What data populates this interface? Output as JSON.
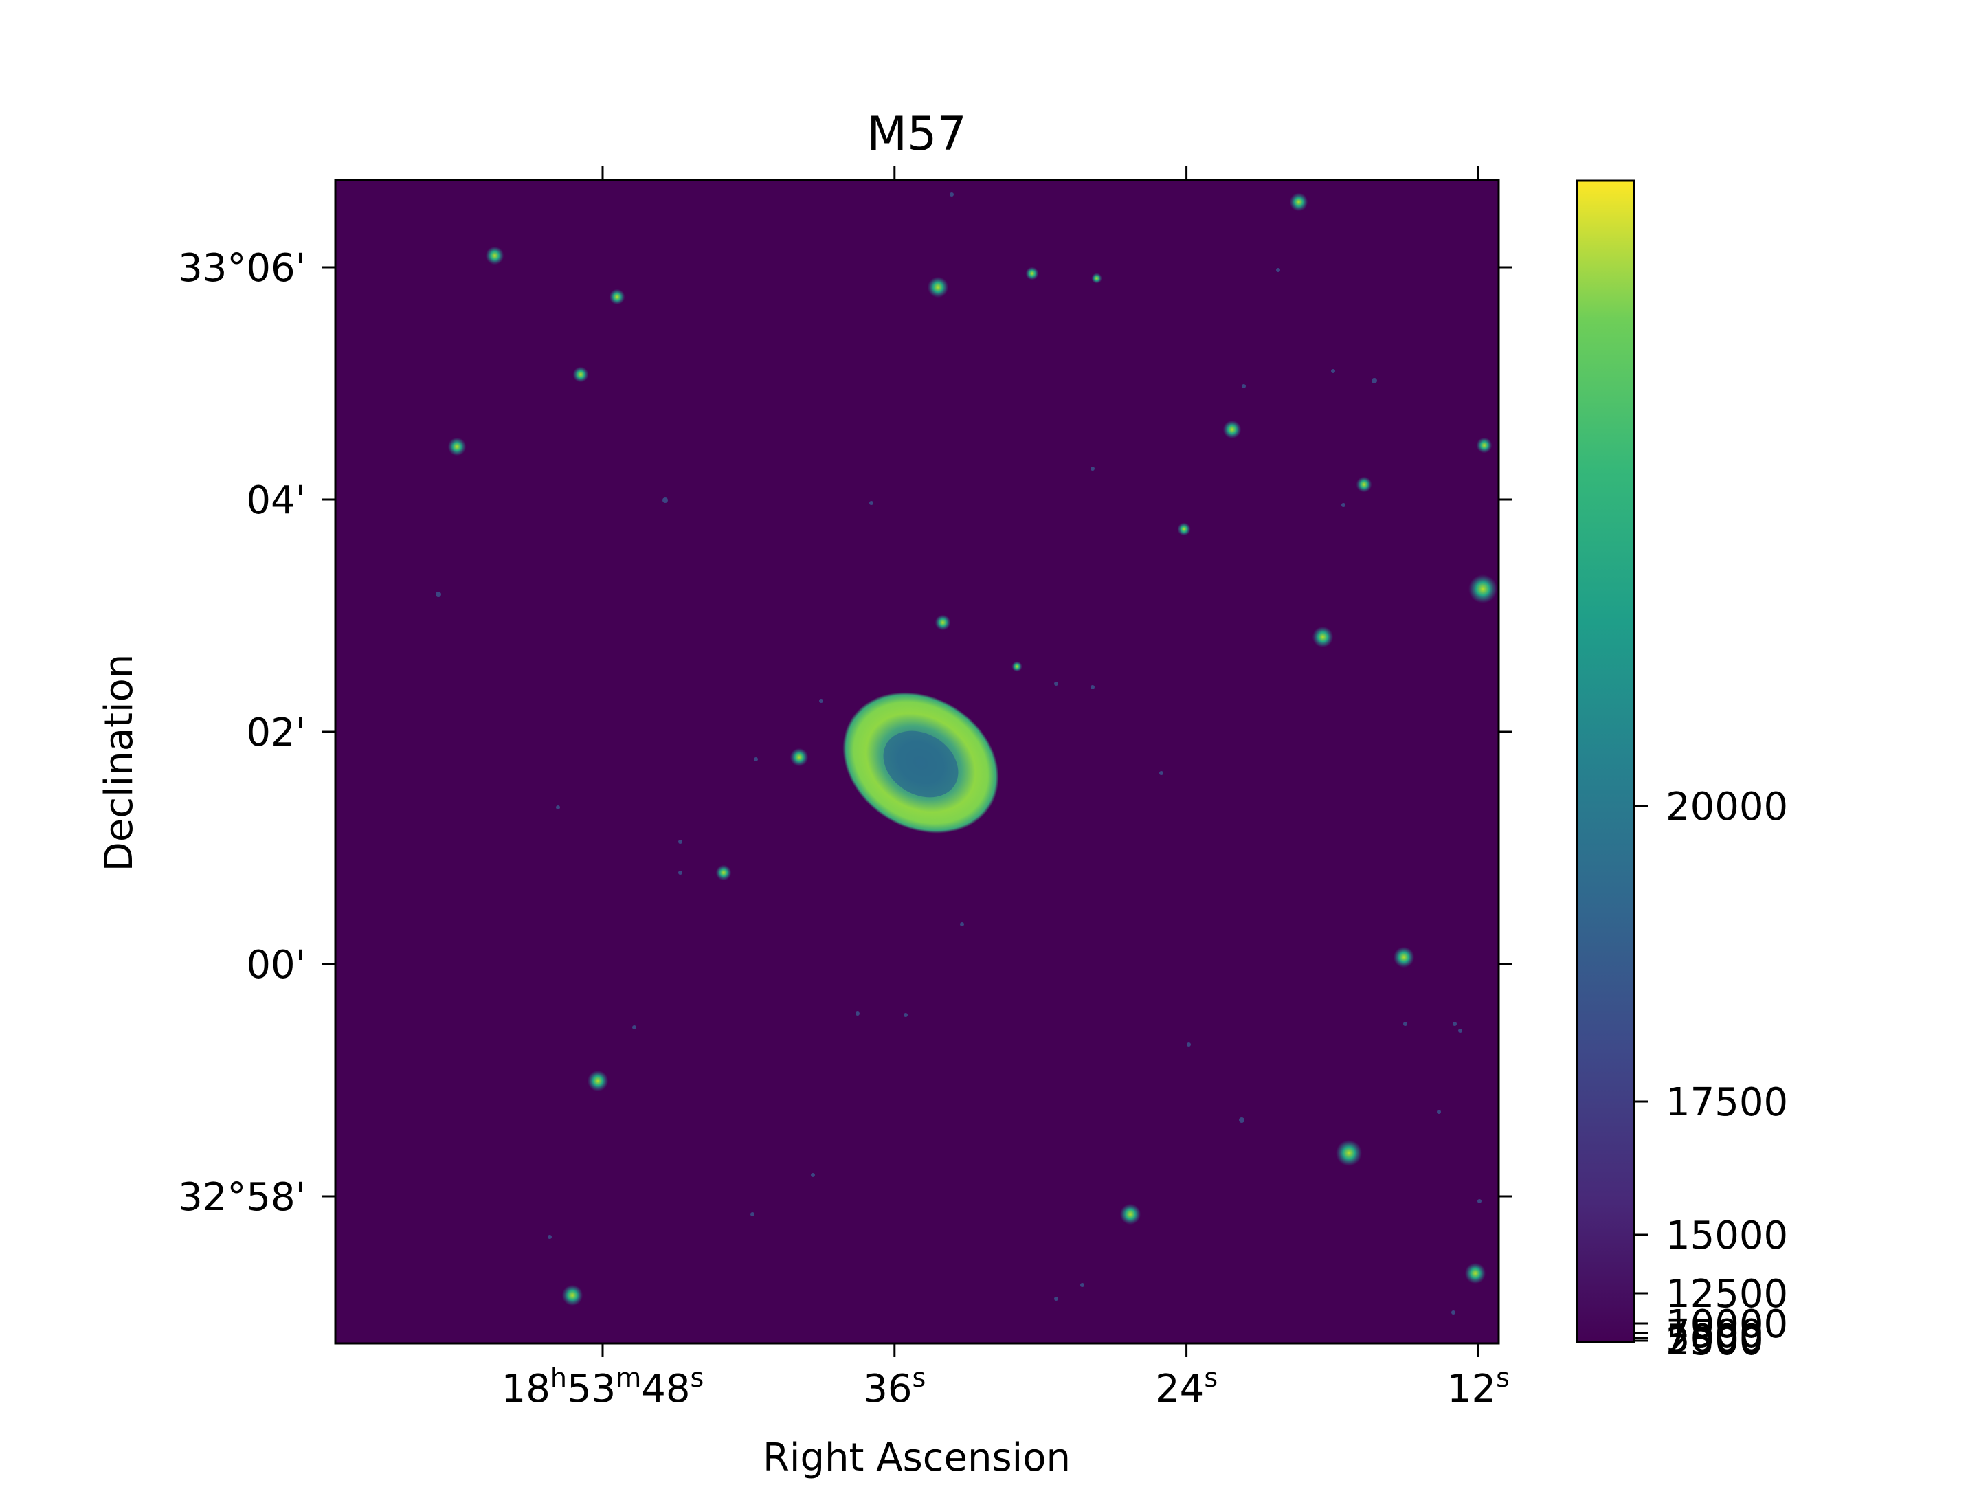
{
  "chart_data": {
    "type": "heatmap",
    "title": "M57",
    "xlabel": "Right Ascension",
    "ylabel": "Declination",
    "x_ticks": [
      {
        "value_s": 48,
        "h": "18",
        "m": "53",
        "s": "48",
        "label": "18h53m48s"
      },
      {
        "value_s": 36,
        "s": "36",
        "label": "36s"
      },
      {
        "value_s": 24,
        "s": "24",
        "label": "24s"
      },
      {
        "value_s": 12,
        "s": "12",
        "label": "12s"
      }
    ],
    "y_ticks": [
      {
        "value_arcmin": 6,
        "label": "33°06'"
      },
      {
        "value_arcmin": 4,
        "label": "04'"
      },
      {
        "value_arcmin": 2,
        "label": "02'"
      },
      {
        "value_arcmin": 0,
        "label": "00'"
      },
      {
        "value_arcmin": -2,
        "label": "32°58'"
      }
    ],
    "colorbar": {
      "colormap": "viridis",
      "scale": "nonlinear",
      "ticks": [
        {
          "value": 20000,
          "label": "20000"
        },
        {
          "value": 17500,
          "label": "17500"
        },
        {
          "value": 15000,
          "label": "15000"
        },
        {
          "value": 12500,
          "label": "12500"
        },
        {
          "value": 10000,
          "label": "10000"
        },
        {
          "value": 7500,
          "label": "7500"
        },
        {
          "value": 5000,
          "label": "5000"
        },
        {
          "value": 2500,
          "label": "2500"
        }
      ]
    },
    "colors": {
      "background": "#440154",
      "ring": "#8fd744",
      "ring_edge": "#35b779",
      "center": "#2a788e",
      "stars": "#21918c"
    }
  }
}
